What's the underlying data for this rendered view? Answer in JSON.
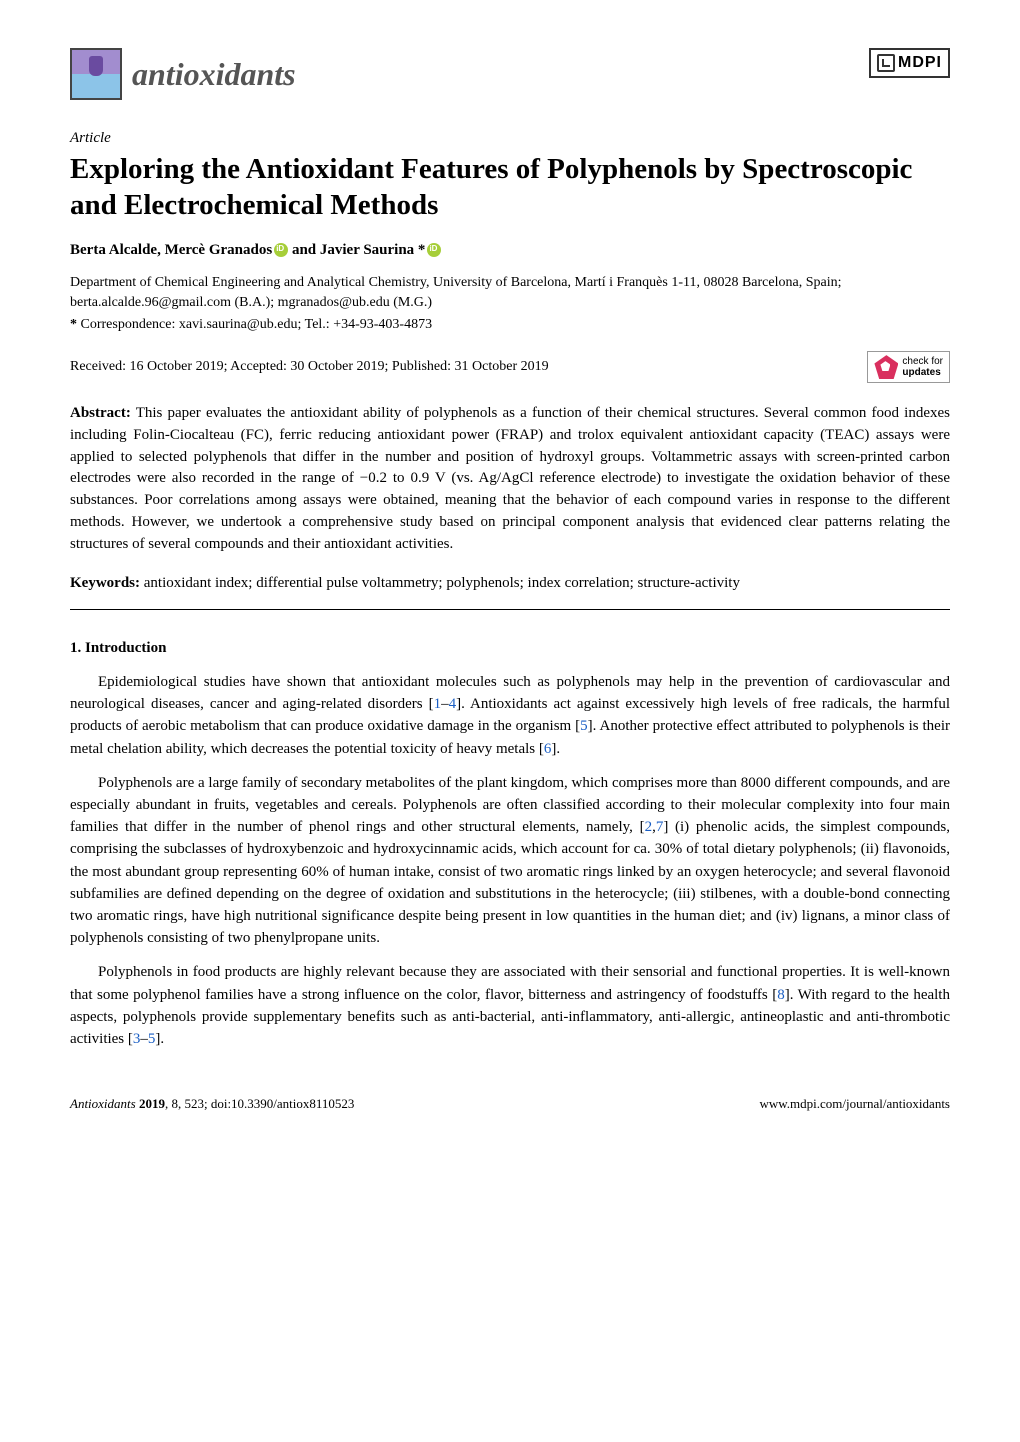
{
  "header": {
    "journal_name": "antioxidants",
    "publisher": "MDPI"
  },
  "article": {
    "label": "Article",
    "title": "Exploring the Antioxidant Features of Polyphenols by Spectroscopic and Electrochemical Methods",
    "authors_pre": "Berta Alcalde, Mercè Granados",
    "authors_mid": " and Javier Saurina *",
    "affiliation": "Department of Chemical Engineering and Analytical Chemistry, University of Barcelona, Martí i Franquès 1-11, 08028 Barcelona, Spain; berta.alcalde.96@gmail.com (B.A.); mgranados@ub.edu (M.G.)",
    "correspondence_label": "*",
    "correspondence": "Correspondence: xavi.saurina@ub.edu; Tel.: +34-93-403-4873",
    "received": "Received: 16 October 2019; Accepted: 30 October 2019; Published: 31 October 2019",
    "check_updates_top": "check for",
    "check_updates_bottom": "updates"
  },
  "abstract": {
    "label": "Abstract:",
    "text": " This paper evaluates the antioxidant ability of polyphenols as a function of their chemical structures. Several common food indexes including Folin-Ciocalteau (FC), ferric reducing antioxidant power (FRAP) and trolox equivalent antioxidant capacity (TEAC) assays were applied to selected polyphenols that differ in the number and position of hydroxyl groups. Voltammetric assays with screen-printed carbon electrodes were also recorded in the range of −0.2 to 0.9 V (vs. Ag/AgCl reference electrode) to investigate the oxidation behavior of these substances. Poor correlations among assays were obtained, meaning that the behavior of each compound varies in response to the different methods. However, we undertook a comprehensive study based on principal component analysis that evidenced clear patterns relating the structures of several compounds and their antioxidant activities."
  },
  "keywords": {
    "label": "Keywords:",
    "text": " antioxidant index; differential pulse voltammetry; polyphenols; index correlation; structure-activity"
  },
  "section1": {
    "heading": "1. Introduction",
    "p1a": "Epidemiological studies have shown that antioxidant molecules such as polyphenols may help in the prevention of cardiovascular and neurological diseases, cancer and aging-related disorders [",
    "r1": "1",
    "d1": "–",
    "r4": "4",
    "p1b": "]. Antioxidants act against excessively high levels of free radicals, the harmful products of aerobic metabolism that can produce oxidative damage in the organism [",
    "r5": "5",
    "p1c": "]. Another protective effect attributed to polyphenols is their metal chelation ability, which decreases the potential toxicity of heavy metals [",
    "r6": "6",
    "p1d": "].",
    "p2a": "Polyphenols are a large family of secondary metabolites of the plant kingdom, which comprises more than 8000 different compounds, and are especially abundant in fruits, vegetables and cereals. Polyphenols are often classified according to their molecular complexity into four main families that differ in the number of phenol rings and other structural elements, namely, [",
    "r2": "2",
    "c27": ",",
    "r7": "7",
    "p2b": "] (i) phenolic acids, the simplest compounds, comprising the subclasses of hydroxybenzoic and hydroxycinnamic acids, which account for ca. 30% of total dietary polyphenols; (ii) flavonoids, the most abundant group representing 60% of human intake, consist of two aromatic rings linked by an oxygen heterocycle; and several flavonoid subfamilies are defined depending on the degree of oxidation and substitutions in the heterocycle; (iii) stilbenes, with a double-bond connecting two aromatic rings, have high nutritional significance despite being present in low quantities in the human diet; and (iv) lignans, a minor class of polyphenols consisting of two phenylpropane units.",
    "p3a": "Polyphenols in food products are highly relevant because they are associated with their sensorial and functional properties. It is well-known that some polyphenol families have a strong influence on the color, flavor, bitterness and astringency of foodstuffs [",
    "r8": "8",
    "p3b": "]. With regard to the health aspects, polyphenols provide supplementary benefits such as anti-bacterial, anti-inflammatory, anti-allergic, antineoplastic and anti-thrombotic activities [",
    "r3": "3",
    "d35": "–",
    "r5b": "5",
    "p3c": "]."
  },
  "footer": {
    "left_italic": "Antioxidants ",
    "left_bold": "2019",
    "left_rest": ", 8, 523; doi:10.3390/antiox8110523",
    "right": "www.mdpi.com/journal/antioxidants"
  },
  "colors": {
    "ref": "#1a5ec4",
    "orcid": "#a6ce39",
    "check": "#d92f5e"
  }
}
